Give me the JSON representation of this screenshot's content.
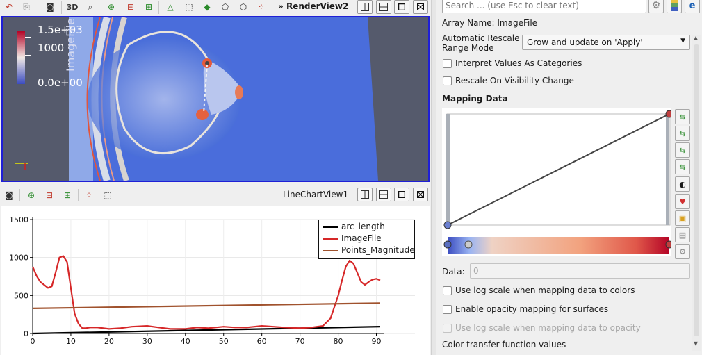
{
  "render_toolbar": {
    "label_3d": "3D",
    "view_title_prefix": "»",
    "view_title": "RenderView2"
  },
  "render_view": {
    "colorbar_title": "ImageFile",
    "colorbar_ticks": [
      "1.5e+03",
      "1000",
      "0.0e+00"
    ]
  },
  "chart_toolbar": {
    "view_title": "LineChartView1"
  },
  "chart_data": {
    "type": "line",
    "xlim": [
      0,
      91
    ],
    "ylim": [
      0,
      1500
    ],
    "x_ticks": [
      "0",
      "10",
      "20",
      "30",
      "40",
      "50",
      "60",
      "70",
      "80",
      "90"
    ],
    "y_ticks": [
      "1500",
      "1000",
      "500",
      "0"
    ],
    "legend_position": "top-right",
    "series": [
      {
        "name": "arc_length",
        "color": "#000000",
        "x": [
          0,
          91
        ],
        "y": [
          0,
          91
        ]
      },
      {
        "name": "ImageFile",
        "color": "#d62728",
        "x": [
          0,
          1,
          2,
          3,
          4,
          5,
          6,
          7,
          8,
          9,
          10,
          11,
          12,
          13,
          14,
          15,
          17,
          20,
          23,
          26,
          30,
          33,
          36,
          40,
          43,
          46,
          50,
          53,
          56,
          60,
          63,
          66,
          70,
          73,
          76,
          78,
          79,
          80,
          81,
          82,
          83,
          84,
          85,
          86,
          87,
          88,
          89,
          90,
          91
        ],
        "y": [
          880,
          760,
          680,
          640,
          600,
          620,
          800,
          1000,
          1020,
          940,
          600,
          260,
          130,
          70,
          70,
          80,
          80,
          60,
          70,
          90,
          100,
          80,
          60,
          60,
          80,
          70,
          90,
          80,
          80,
          100,
          90,
          80,
          70,
          80,
          100,
          200,
          350,
          500,
          700,
          880,
          960,
          920,
          800,
          680,
          640,
          680,
          710,
          720,
          700
        ]
      },
      {
        "name": "Points_Magnitude",
        "color": "#a0522d",
        "x": [
          0,
          91
        ],
        "y": [
          330,
          400
        ]
      }
    ]
  },
  "search": {
    "placeholder": "Search ... (use Esc to clear text)"
  },
  "properties": {
    "array_name": "Array Name: ImageFile",
    "rescale_label_1": "Automatic Rescale",
    "rescale_label_2": "Range Mode",
    "rescale_value": "Grow and update on 'Apply'",
    "interpret_values": "Interpret Values As Categories",
    "rescale_visibility": "Rescale On Visibility Change",
    "mapping_data_heading": "Mapping Data",
    "data_label": "Data:",
    "data_value": "0",
    "log_scale_colors": "Use log scale when mapping data to colors",
    "enable_opacity": "Enable opacity mapping for surfaces",
    "log_scale_opacity": "Use log scale when mapping data to opacity",
    "color_tf_values": "Color transfer function values"
  }
}
